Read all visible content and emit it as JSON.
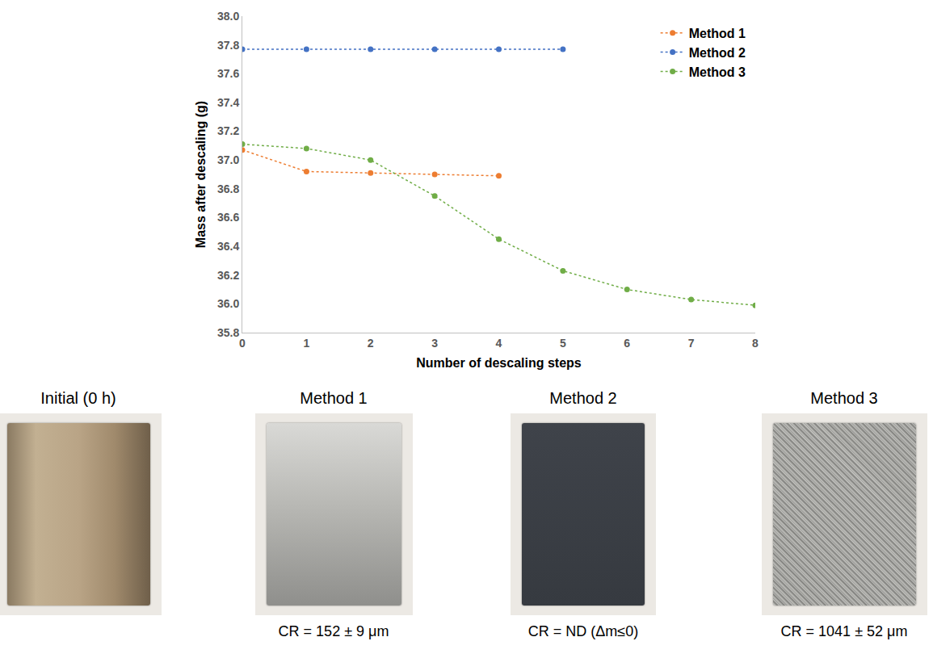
{
  "chart_data": {
    "type": "line",
    "x_title": "Number of descaling steps",
    "y_title": "Mass after descaling (g)",
    "xlim": [
      0,
      8
    ],
    "xticks": [
      0,
      1,
      2,
      3,
      4,
      5,
      6,
      7,
      8
    ],
    "ylim": [
      35.8,
      38.0
    ],
    "yticks": [
      35.8,
      {
        "value": 36,
        "label": "36.0"
      },
      36.2,
      36.4,
      36.6,
      36.8,
      {
        "value": 37,
        "label": "37.0"
      },
      37.2,
      37.4,
      37.6,
      37.8,
      {
        "value": 38,
        "label": "38.0"
      }
    ],
    "grid": false,
    "legend": "upper right",
    "line_style": "dotted",
    "marker": "circle",
    "series": [
      {
        "name": "Method 1",
        "color": "#ed7d31",
        "x": [
          0,
          1,
          2,
          3,
          4
        ],
        "values": [
          37.07,
          36.92,
          36.91,
          36.9,
          36.89
        ]
      },
      {
        "name": "Method 2",
        "color": "#4472c4",
        "x": [
          0,
          1,
          2,
          3,
          4,
          5
        ],
        "values": [
          37.77,
          37.77,
          37.77,
          37.77,
          37.77,
          37.77
        ]
      },
      {
        "name": "Method 3",
        "color": "#70ad47",
        "x": [
          0,
          1,
          2,
          3,
          4,
          5,
          6,
          7,
          8
        ],
        "values": [
          37.11,
          37.08,
          37.0,
          36.75,
          36.45,
          36.23,
          36.1,
          36.03,
          35.99
        ]
      }
    ]
  },
  "panels": [
    {
      "title": "Initial (0 h)"
    },
    {
      "title": "Method 1",
      "caption": "CR = 152 ± 9 μm"
    },
    {
      "title": "Method 2",
      "caption": "CR = ND (Δm≤0)"
    },
    {
      "title": "Method 3",
      "caption": "CR = 1041 ± 52 μm"
    }
  ]
}
